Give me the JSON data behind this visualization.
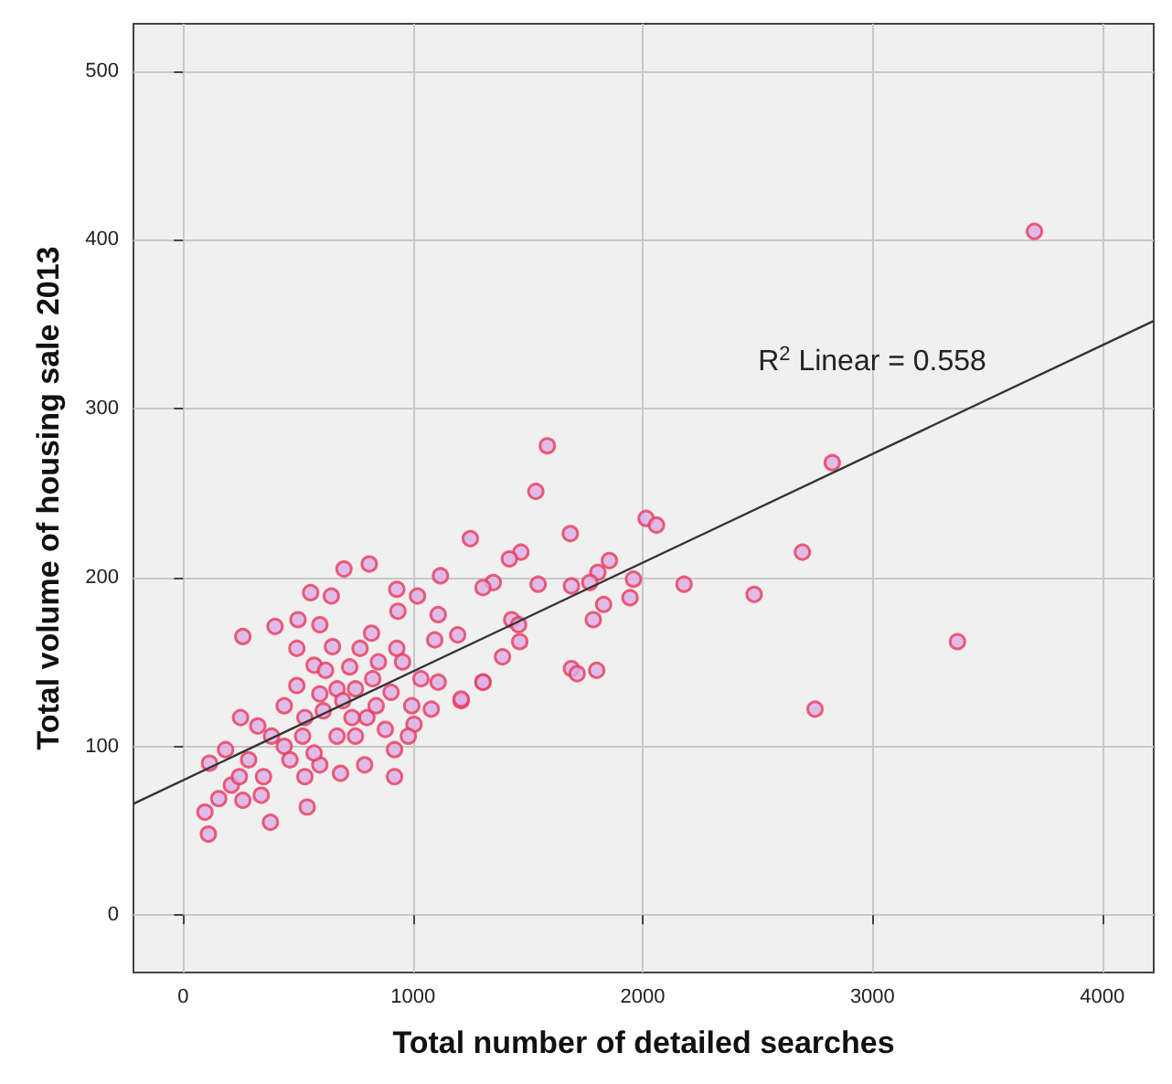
{
  "chart_data": {
    "type": "scatter",
    "xlabel": "Total number of detailed searches",
    "ylabel": "Total volume of housing sale 2013",
    "xlim": [
      -216,
      4224
    ],
    "ylim": [
      -34,
      528
    ],
    "xticks": [
      0,
      1000,
      2000,
      3000,
      4000
    ],
    "yticks": [
      0,
      100,
      200,
      300,
      400,
      500
    ],
    "grid": true,
    "marker": "circle",
    "annotations": [
      "R$^{2}$ Linear = 0.558"
    ],
    "series": [
      {
        "color": "#dcaee6",
        "x": [
          260,
          400,
          500,
          595,
          700,
          810,
          555,
          645,
          930,
          935,
          1020,
          1120,
          1250,
          495,
          650,
          770,
          820,
          930,
          955,
          1110,
          1095,
          1195,
          250,
          325,
          185,
          115,
          95,
          110,
          380,
          540,
          260,
          155,
          210,
          350,
          340,
          530,
          685,
          790,
          920,
          920,
          880,
          440,
          595,
          670,
          750,
          800,
          440,
          495,
          595,
          670,
          725,
          850,
          825,
          905,
          995,
          1035,
          1110,
          1080,
          1210,
          1305,
          530,
          610,
          735,
          520,
          570,
          285,
          245,
          465,
          385,
          695,
          570,
          620,
          1005,
          980,
          840,
          750,
          1585,
          1535,
          1685,
          2015,
          2060,
          2695,
          2825,
          2485,
          2180,
          3370,
          2750,
          3705,
          1470,
          1420,
          1855,
          1805,
          1960,
          1945,
          1830,
          1785,
          1690,
          1770,
          1545,
          1350,
          1305,
          1430,
          1460,
          1465,
          1390,
          1690,
          1715,
          1800,
          1305,
          1210
        ],
        "values": [
          165,
          171,
          175,
          172,
          205,
          208,
          191,
          189,
          193,
          180,
          189,
          201,
          223,
          158,
          159,
          158,
          167,
          158,
          150,
          178,
          163,
          166,
          117,
          112,
          98,
          90,
          61,
          48,
          55,
          64,
          68,
          69,
          77,
          82,
          71,
          82,
          84,
          89,
          82,
          98,
          110,
          100,
          89,
          106,
          106,
          117,
          124,
          136,
          131,
          134,
          147,
          150,
          140,
          132,
          124,
          140,
          138,
          122,
          127,
          138,
          117,
          121,
          117,
          106,
          96,
          92,
          82,
          92,
          106,
          127,
          148,
          145,
          113,
          106,
          124,
          134,
          278,
          251,
          226,
          235,
          231,
          215,
          268,
          190,
          196,
          162,
          122,
          405,
          215,
          211,
          210,
          203,
          199,
          188,
          184,
          175,
          195,
          197,
          196,
          197,
          194,
          175,
          172,
          162,
          153,
          146,
          143,
          145,
          138,
          128
        ]
      },
      {
        "type": "line",
        "color": "#333333",
        "line_style": "solid",
        "marker": "none",
        "x": [
          -216,
          4224
        ],
        "values": [
          66,
          352
        ]
      }
    ]
  }
}
